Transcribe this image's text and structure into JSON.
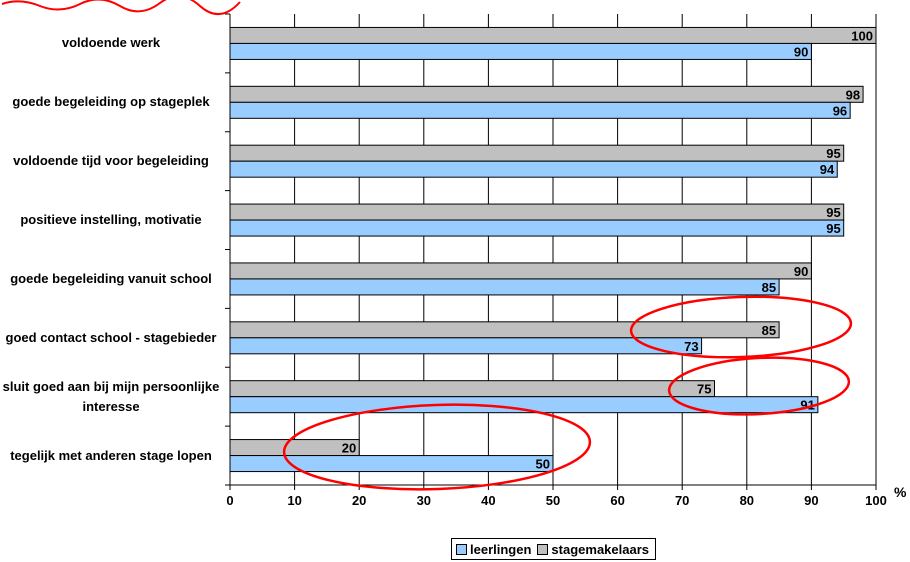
{
  "chart_data": {
    "type": "bar",
    "orientation": "horizontal",
    "categories": [
      "voldoende werk",
      "goede begeleiding op stageplek",
      "voldoende tijd voor begeleiding",
      "positieve instelling, motivatie",
      "goede begeleiding vanuit school",
      "goed contact school - stagebieder",
      "sluit goed aan bij mijn persoonlijke interesse",
      "tegelijk met anderen stage lopen"
    ],
    "series": [
      {
        "name": "stagemakelaars",
        "color": "#c0c0c0",
        "values": [
          100,
          98,
          95,
          95,
          90,
          85,
          75,
          20
        ]
      },
      {
        "name": "leerlingen",
        "color": "#99ccff",
        "values": [
          90,
          96,
          94,
          95,
          85,
          73,
          91,
          50
        ]
      }
    ],
    "xlim": [
      0,
      100
    ],
    "xticks": [
      0,
      10,
      20,
      30,
      40,
      50,
      60,
      70,
      80,
      90,
      100
    ],
    "x_unit": "%",
    "grid": true,
    "legend_position": "bottom",
    "legend": [
      "leerlingen",
      "stagemakelaars"
    ],
    "annotations": "red ellipses around highlighted bars",
    "highlight_color": "#ff0000"
  }
}
